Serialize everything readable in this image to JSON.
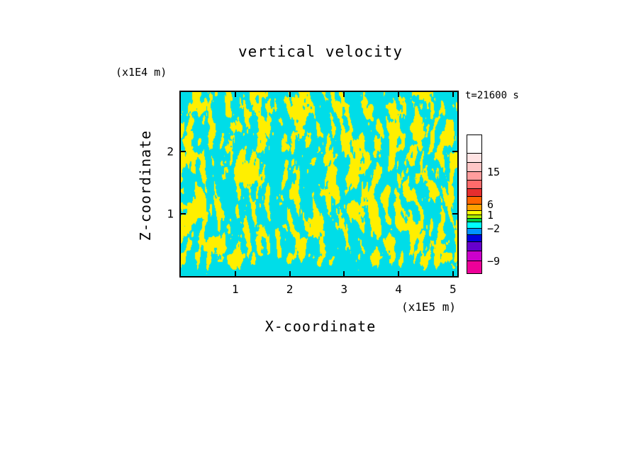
{
  "title": "vertical velocity",
  "time_annotation": "t=21600 s",
  "x_axis": {
    "label": "X-coordinate",
    "unit": "(x1E5 m)",
    "ticks": [
      "1",
      "2",
      "3",
      "4",
      "5"
    ]
  },
  "y_axis": {
    "label": "Z-coordinate",
    "unit": "(x1E4 m)",
    "ticks": [
      "1",
      "2"
    ]
  },
  "colorbar": {
    "segments": [
      {
        "color": "#ffffff",
        "h": 26
      },
      {
        "color": "#ffe3e3",
        "h": 13
      },
      {
        "color": "#ffc6c6",
        "h": 13
      },
      {
        "color": "#ff9d9d",
        "h": 12
      },
      {
        "color": "#ff6b6b",
        "h": 12
      },
      {
        "color": "#e62e2e",
        "h": 11
      },
      {
        "color": "#ff6400",
        "h": 11
      },
      {
        "color": "#ffa000",
        "h": 9
      },
      {
        "color": "#ffff00",
        "h": 6
      },
      {
        "color": "#aaee00",
        "h": 5
      },
      {
        "color": "#00cc44",
        "h": 5
      },
      {
        "color": "#00ffff",
        "h": 9
      },
      {
        "color": "#0091ff",
        "h": 9
      },
      {
        "color": "#0000dd",
        "h": 10
      },
      {
        "color": "#6600cc",
        "h": 13
      },
      {
        "color": "#cc00cc",
        "h": 14
      },
      {
        "color": "#ee0099",
        "h": 17
      }
    ],
    "labels": [
      {
        "text": "15",
        "after": 3
      },
      {
        "text": "6",
        "after": 7
      },
      {
        "text": "1",
        "after": 9
      },
      {
        "text": "−2",
        "after": 12
      },
      {
        "text": "−9",
        "after": 16
      }
    ]
  },
  "chart_data": {
    "type": "heatmap",
    "title": "vertical velocity",
    "xlabel": "X-coordinate",
    "ylabel": "Z-coordinate",
    "x_unit": "(x1E5 m)",
    "y_unit": "(x1E4 m)",
    "x_ticks": [
      1,
      2,
      3,
      4,
      5
    ],
    "y_ticks": [
      1,
      2
    ],
    "xlim": [
      0,
      5.08
    ],
    "ylim": [
      0,
      2.95
    ],
    "time_annotation": "t=21600 s",
    "colorbar_levels": [
      -9,
      -2,
      1,
      6,
      15
    ],
    "legend_position": "right",
    "grid": false,
    "field": {
      "description": "Binary-looking turbulent vertical-velocity field: thin wavy yellow updraft streaks (w between about 1 and 6) on a cyan background (w between about -2 and 1); a mostly-cyan shallow band with sparse yellow specks runs along the bottom boundary.",
      "positive_color": "#ffef00",
      "negative_color": "#00dde8",
      "yellow_fraction": 0.37,
      "seed": 1337
    }
  }
}
